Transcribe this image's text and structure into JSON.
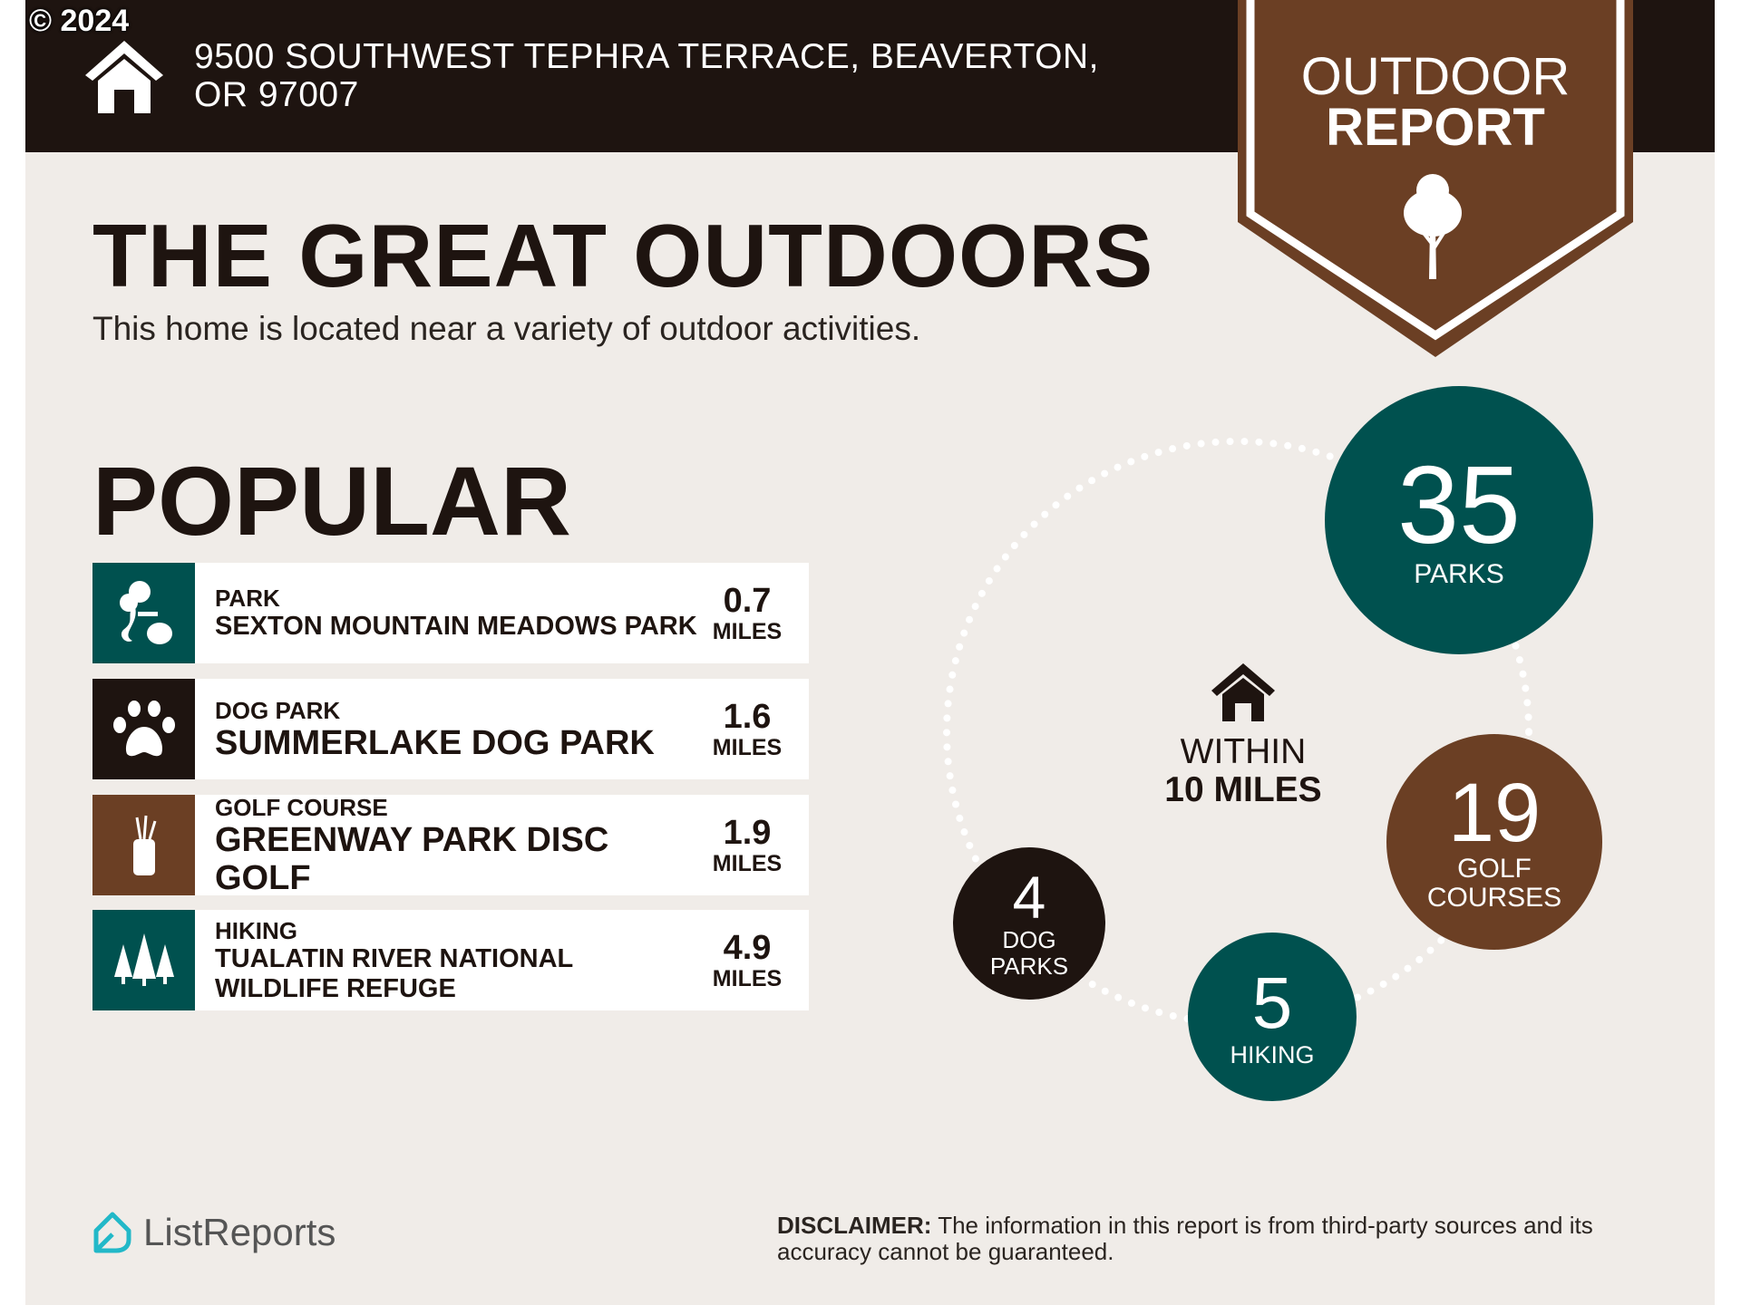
{
  "copyright": "© 2024",
  "header": {
    "address": "9500 SOUTHWEST TEPHRA TERRACE, BEAVERTON, OR 97007"
  },
  "badge": {
    "line1": "OUTDOOR",
    "line2": "REPORT",
    "icon": "tree-icon"
  },
  "title": "THE GREAT OUTDOORS",
  "subtitle": "This home is located near a variety of outdoor activities.",
  "popular": {
    "heading": "POPULAR",
    "items": [
      {
        "category": "PARK",
        "name": "SEXTON MOUNTAIN MEADOWS PARK",
        "distance": "0.7",
        "unit": "MILES",
        "icon": "park-icon",
        "color": "#00514f"
      },
      {
        "category": "DOG PARK",
        "name": "SUMMERLAKE DOG PARK",
        "distance": "1.6",
        "unit": "MILES",
        "icon": "paw-icon",
        "color": "#1e1410"
      },
      {
        "category": "GOLF COURSE",
        "name": "GREENWAY PARK DISC GOLF",
        "distance": "1.9",
        "unit": "MILES",
        "icon": "golf-bag-icon",
        "color": "#6b3f24"
      },
      {
        "category": "HIKING",
        "name": "TUALATIN RIVER NATIONAL WILDLIFE REFUGE",
        "distance": "4.9",
        "unit": "MILES",
        "icon": "pine-trees-icon",
        "color": "#00514f"
      }
    ]
  },
  "summary": {
    "within_line1": "WITHIN",
    "within_line2": "10 MILES",
    "counts": [
      {
        "value": "35",
        "label": "PARKS",
        "color": "#00514f"
      },
      {
        "value": "19",
        "label": "GOLF COURSES",
        "color": "#6b3f24"
      },
      {
        "value": "5",
        "label": "HIKING",
        "color": "#00514f"
      },
      {
        "value": "4",
        "label": "DOG PARKS",
        "color": "#1e1410"
      }
    ]
  },
  "footer": {
    "logo": "ListReports",
    "disclaimer_label": "DISCLAIMER:",
    "disclaimer_text": " The information in this report is from third-party sources and its accuracy cannot be guaranteed."
  }
}
